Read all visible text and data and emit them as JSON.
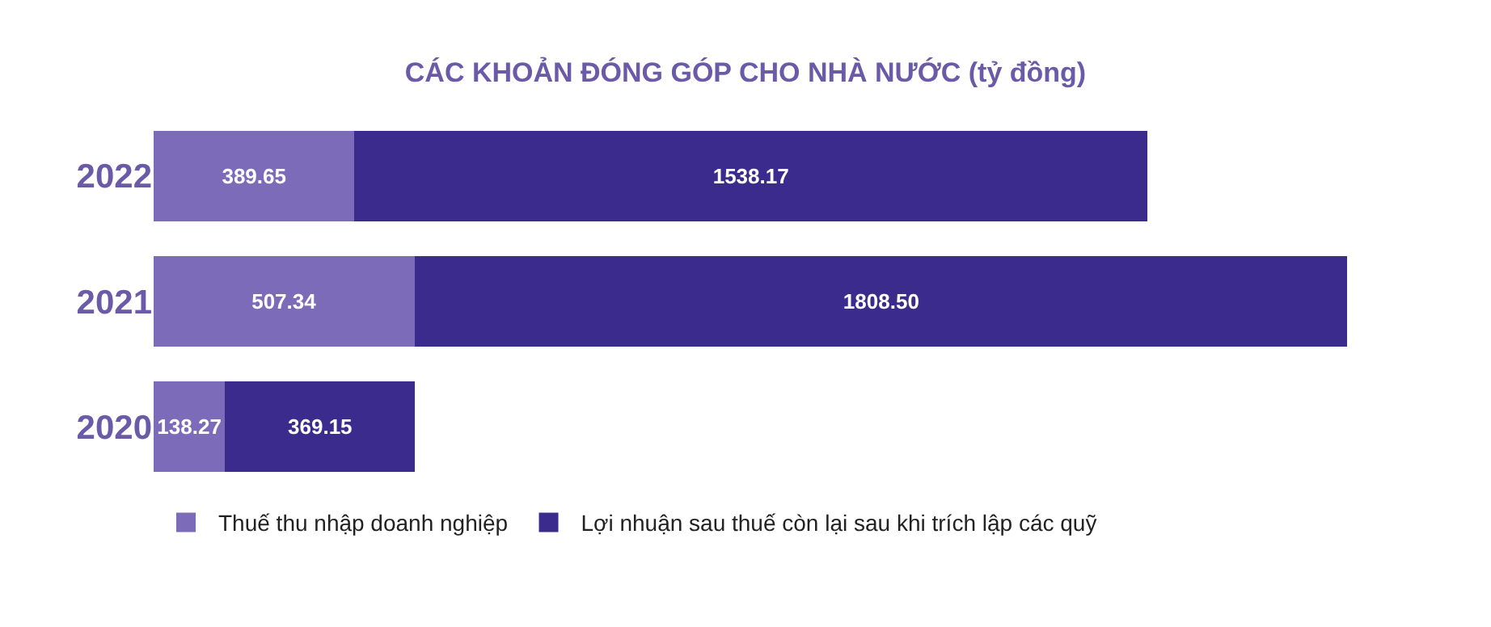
{
  "chart_data": {
    "type": "bar",
    "orientation": "horizontal",
    "stacked": true,
    "title": "CÁC KHOẢN ĐÓNG GÓP CHO NHÀ NƯỚC (tỷ đồng)",
    "categories": [
      "2022",
      "2021",
      "2020"
    ],
    "series": [
      {
        "name": "Thuế thu nhập doanh nghiệp",
        "color": "#7b6bb8",
        "values": [
          389.65,
          507.34,
          138.27
        ],
        "value_labels": [
          "389.65",
          "507.34",
          "138.27"
        ]
      },
      {
        "name": "Lợi nhuận sau thuế còn lại sau khi trích lập các quỹ",
        "color": "#3b2b8c",
        "values": [
          1538.17,
          1808.5,
          369.15
        ],
        "value_labels": [
          "1538.17",
          "1808.50",
          "369.15"
        ]
      }
    ],
    "legend": "bottom"
  }
}
